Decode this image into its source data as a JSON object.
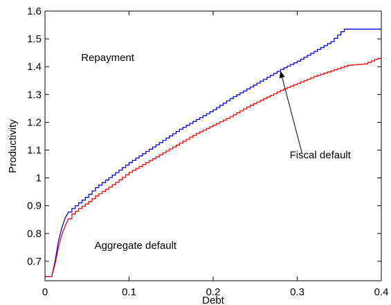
{
  "chart_data": {
    "type": "line",
    "title": "",
    "xlabel": "Debt",
    "ylabel": "Productivity",
    "xlim": [
      0,
      0.4
    ],
    "ylim": [
      0.63,
      1.6
    ],
    "x_ticks": [
      "0",
      "0.1",
      "0.2",
      "0.3",
      "0.4"
    ],
    "y_ticks": [
      "0.7",
      "0.8",
      "0.9",
      "1",
      "1.1",
      "1.2",
      "1.3",
      "1.4",
      "1.5",
      "1.6"
    ],
    "x_tick_values": [
      0,
      0.1,
      0.2,
      0.3,
      0.4
    ],
    "y_tick_values": [
      0.7,
      0.8,
      0.9,
      1.0,
      1.1,
      1.2,
      1.3,
      1.4,
      1.5,
      1.6
    ],
    "grid": false,
    "series": [
      {
        "color": "#0000ff",
        "x": [
          0,
          0.01,
          0.012,
          0.015,
          0.02,
          0.025,
          0.03,
          0.04,
          0.05,
          0.06,
          0.08,
          0.1,
          0.12,
          0.14,
          0.16,
          0.18,
          0.2,
          0.22,
          0.24,
          0.26,
          0.28,
          0.3,
          0.32,
          0.34,
          0.355,
          0.4
        ],
        "y": [
          0.645,
          0.645,
          0.7,
          0.76,
          0.82,
          0.865,
          0.885,
          0.91,
          0.935,
          0.965,
          1.01,
          1.055,
          1.095,
          1.135,
          1.175,
          1.21,
          1.245,
          1.285,
          1.32,
          1.355,
          1.39,
          1.42,
          1.455,
          1.49,
          1.535,
          1.535
        ],
        "step": 0.004
      },
      {
        "color": "#ff0000",
        "x": [
          0,
          0.01,
          0.012,
          0.015,
          0.02,
          0.025,
          0.03,
          0.04,
          0.05,
          0.06,
          0.08,
          0.1,
          0.12,
          0.14,
          0.16,
          0.18,
          0.2,
          0.22,
          0.24,
          0.26,
          0.28,
          0.3,
          0.32,
          0.34,
          0.36,
          0.38,
          0.395,
          0.4
        ],
        "y": [
          0.645,
          0.645,
          0.69,
          0.74,
          0.795,
          0.835,
          0.865,
          0.89,
          0.91,
          0.935,
          0.975,
          1.02,
          1.055,
          1.09,
          1.125,
          1.16,
          1.19,
          1.22,
          1.255,
          1.285,
          1.315,
          1.34,
          1.365,
          1.385,
          1.405,
          1.41,
          1.43,
          1.43
        ],
        "step": 0.004
      }
    ],
    "annotations": [
      {
        "text": "Repayment",
        "x": 0.043,
        "y": 1.42
      },
      {
        "text": "Fiscal default",
        "x": 0.291,
        "y": 1.07
      },
      {
        "text": "Aggregate default",
        "x": 0.059,
        "y": 0.745
      }
    ],
    "arrow": {
      "from": [
        0.306,
        1.085
      ],
      "to": [
        0.28,
        1.385
      ]
    }
  }
}
